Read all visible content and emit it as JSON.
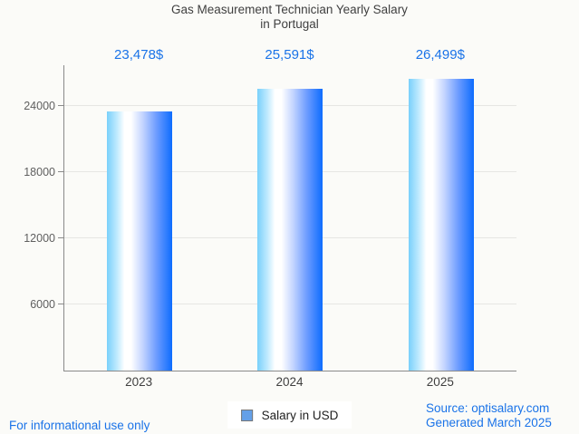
{
  "header": {
    "title_line1": "Gas Measurement Technician Yearly Salary",
    "title_line2": "in Portugal"
  },
  "chart_data": {
    "type": "bar",
    "title": "Gas Measurement Technician Yearly Salary in Portugal",
    "categories": [
      "2023",
      "2024",
      "2025"
    ],
    "series": [
      {
        "name": "Salary in USD",
        "values": [
          23478,
          25591,
          26499
        ]
      }
    ],
    "value_labels": [
      "23,478$",
      "25,591$",
      "26,499$"
    ],
    "yticks": [
      6000,
      12000,
      18000,
      24000
    ],
    "ylim": [
      0,
      27700
    ],
    "grid": true,
    "legend_position": "bottom-center"
  },
  "legend": {
    "label": "Salary in USD"
  },
  "footer": {
    "disclaimer": "For informational use only",
    "source": "Source: optisalary.com",
    "generated": "Generated March 2025"
  },
  "colors": {
    "accent_blue": "#1a73e8",
    "bar_gradient_left": "#79d0fb",
    "bar_gradient_mid": "#ffffff",
    "bar_gradient_right": "#0d6cfe",
    "legend_marker_fill": "#64a0e8",
    "axis_line": "#8a8a8a",
    "gridline": "#e6e6e3",
    "title_text": "#3f3f3f",
    "tick_text": "#5f5f5f",
    "background": "#fbfbf8"
  }
}
